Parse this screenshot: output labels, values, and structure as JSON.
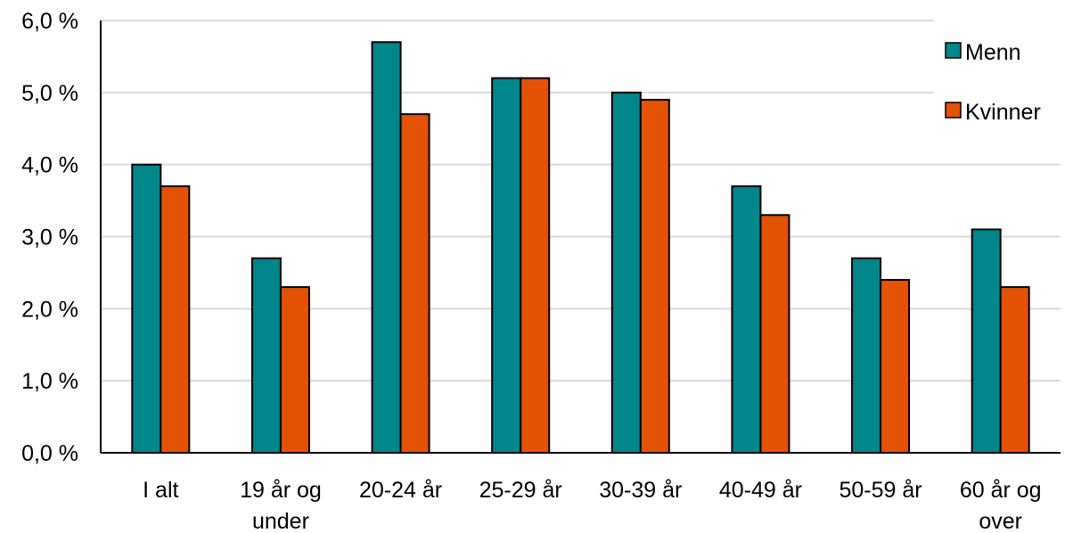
{
  "chart_data": {
    "type": "bar",
    "title": "",
    "xlabel": "",
    "ylabel": "",
    "ylim": [
      0,
      6
    ],
    "yticks": [
      0,
      1,
      2,
      3,
      4,
      5,
      6
    ],
    "ytick_labels": [
      "0,0 %",
      "1,0 %",
      "2,0 %",
      "3,0 %",
      "4,0 %",
      "5,0 %",
      "6,0 %"
    ],
    "categories": [
      [
        "I alt"
      ],
      [
        "19 år og",
        "under"
      ],
      [
        "20-24 år"
      ],
      [
        "25-29 år"
      ],
      [
        "30-39 år"
      ],
      [
        "40-49 år"
      ],
      [
        "50-59 år"
      ],
      [
        "60 år og",
        "over"
      ]
    ],
    "series": [
      {
        "name": "Menn",
        "color": "#00868B",
        "values": [
          4.0,
          2.7,
          5.7,
          5.2,
          5.0,
          3.7,
          2.7,
          3.1
        ]
      },
      {
        "name": "Kvinner",
        "color": "#E35205",
        "values": [
          3.7,
          2.3,
          4.7,
          5.2,
          4.9,
          3.3,
          2.4,
          2.3
        ]
      }
    ],
    "grid": true,
    "legend_position": "top-right"
  }
}
